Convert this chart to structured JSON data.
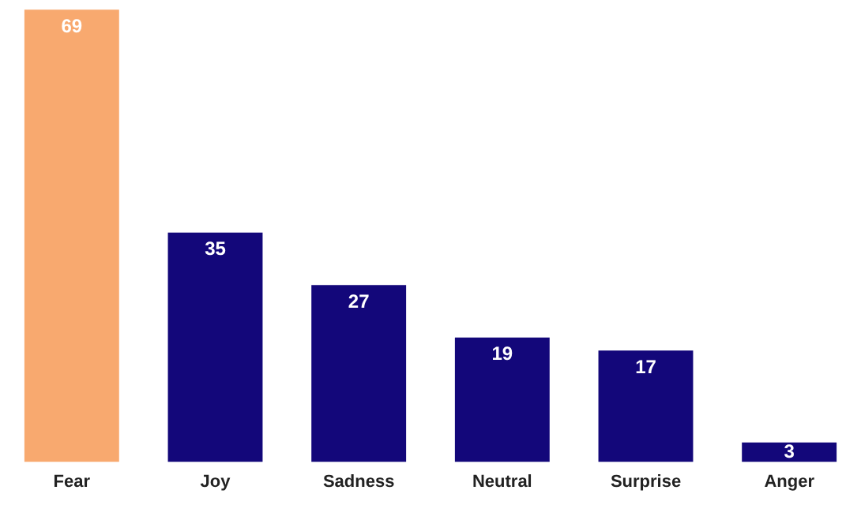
{
  "chart_data": {
    "type": "bar",
    "categories": [
      "Fear",
      "Joy",
      "Sadness",
      "Neutral",
      "Surprise",
      "Anger"
    ],
    "values": [
      69,
      35,
      27,
      19,
      17,
      3
    ],
    "colors": [
      "#f8a96f",
      "#13077a",
      "#13077a",
      "#13077a",
      "#13077a",
      "#13077a"
    ],
    "data_labels": true,
    "grid": false,
    "legend": false
  }
}
